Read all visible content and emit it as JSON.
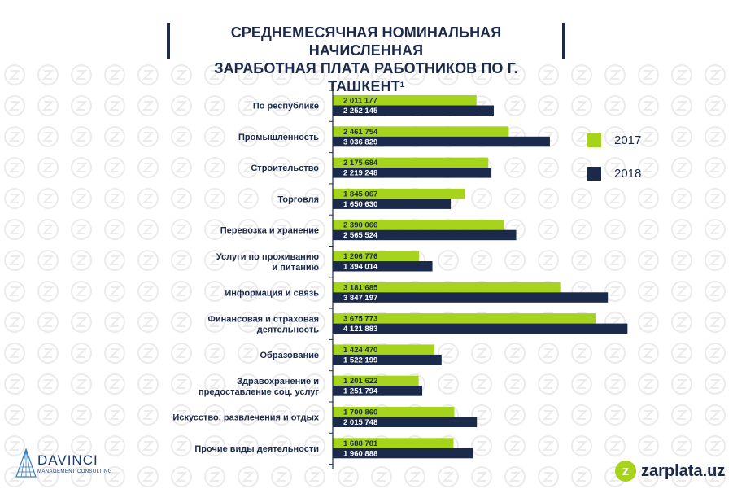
{
  "title": {
    "line1": "СРЕДНЕМЕСЯЧНАЯ НОМИНАЛЬНАЯ НАЧИСЛЕННАЯ",
    "line2": "ЗАРАБОТНАЯ ПЛАТА РАБОТНИКОВ ПО Г. ТАШКЕНТ",
    "footnote": "1"
  },
  "colors": {
    "series2017": "#a6d41d",
    "series2018": "#1b2a4a",
    "title": "#1b2a4a"
  },
  "chart_data": {
    "type": "bar",
    "orientation": "horizontal",
    "title": "СРЕДНЕМЕСЯЧНАЯ НОМИНАЛЬНАЯ НАЧИСЛЕННАЯ ЗАРАБОТНАЯ ПЛАТА РАБОТНИКОВ ПО Г. ТАШКЕНТ",
    "categories": [
      [
        "По республике"
      ],
      [
        "Промышленность"
      ],
      [
        "Строительство"
      ],
      [
        "Торговля"
      ],
      [
        "Перевозка и хранение"
      ],
      [
        "Услуги по проживанию",
        "и питанию"
      ],
      [
        "Информация и связь"
      ],
      [
        "Финансовая и страховая",
        "деятельность"
      ],
      [
        "Образование"
      ],
      [
        "Здравохранение и",
        "предоставление соц. услуг"
      ],
      [
        "Искусство, развлечения и отдых"
      ],
      [
        "Прочие виды деятельности"
      ]
    ],
    "series": [
      {
        "name": "2017",
        "values": [
          2011177,
          2461754,
          2175684,
          1845067,
          2390066,
          1206776,
          3181685,
          3675773,
          1424470,
          1201622,
          1700860,
          1688781
        ],
        "labels": [
          "2 011 177",
          "2 461 754",
          "2 175 684",
          "1 845 067",
          "2 390 066",
          "1 206 776",
          "3 181 685",
          "3 675 773",
          "1 424 470",
          "1 201 622",
          "1 700 860",
          "1 688 781"
        ]
      },
      {
        "name": "2018",
        "values": [
          2252145,
          3036829,
          2219248,
          1650630,
          2565524,
          1394014,
          3847197,
          4121883,
          1522199,
          1251794,
          2015748,
          1960888
        ],
        "labels": [
          "2 252 145",
          "3 036 829",
          "2 219 248",
          "1 650 630",
          "2 565 524",
          "1 394 014",
          "3 847 197",
          "4 121 883",
          "1 522 199",
          "1 251 794",
          "2 015 748",
          "1 960 888"
        ]
      }
    ],
    "xlim": [
      0,
      4300000
    ],
    "legend": "right"
  },
  "legend": {
    "label2017": "2017",
    "label2018": "2018"
  },
  "logos": {
    "davinci_name": "DAVINCI",
    "davinci_sub": "MANAGEMENT CONSULTING",
    "zarplata_mark": "z",
    "zarplata_name": "zarplata.uz"
  }
}
